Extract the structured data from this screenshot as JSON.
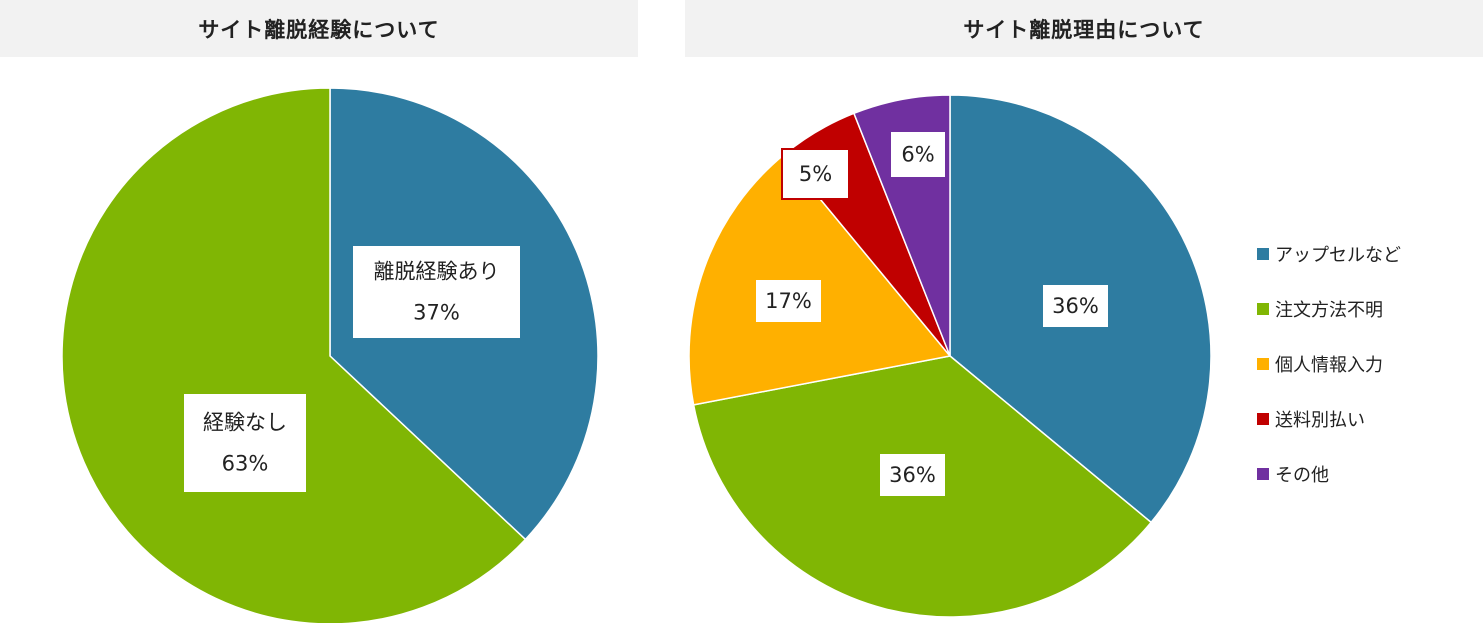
{
  "chart_data": [
    {
      "type": "pie",
      "title": "サイト離脱経験について",
      "categories": [
        "離脱経験あり",
        "経験なし"
      ],
      "values": [
        37,
        63
      ],
      "value_labels": [
        "37%",
        "63%"
      ],
      "colors": [
        "#2e7ca1",
        "#80b604"
      ],
      "legend": false
    },
    {
      "type": "pie",
      "title": "サイト離脱理由について",
      "categories": [
        "アップセルなど",
        "注文方法不明",
        "個人情報入力",
        "送料別払い",
        "その他"
      ],
      "values": [
        36,
        36,
        17,
        5,
        6
      ],
      "value_labels": [
        "36%",
        "36%",
        "17%",
        "5%",
        "6%"
      ],
      "colors": [
        "#2e7ca1",
        "#80b604",
        "#ffb000",
        "#c00000",
        "#7030a0"
      ],
      "legend": "right"
    }
  ]
}
